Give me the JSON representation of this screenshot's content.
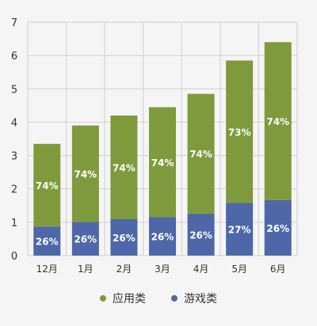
{
  "chart_data": {
    "type": "bar",
    "stacked": true,
    "categories": [
      "12月",
      "1月",
      "2月",
      "3月",
      "4月",
      "5月",
      "6月"
    ],
    "totals": [
      3.35,
      3.9,
      4.2,
      4.45,
      4.85,
      5.85,
      6.4
    ],
    "series": [
      {
        "name": "游戏类",
        "color": "#4d67a8",
        "labels": [
          "26%",
          "26%",
          "26%",
          "26%",
          "26%",
          "27%",
          "26%"
        ]
      },
      {
        "name": "应用类",
        "color": "#7f9a3c",
        "labels": [
          "74%",
          "74%",
          "74%",
          "74%",
          "74%",
          "73%",
          "74%"
        ]
      }
    ],
    "y_ticks": [
      "0",
      "1",
      "2",
      "3",
      "4",
      "5",
      "6",
      "7"
    ],
    "ylim": [
      0,
      7
    ],
    "grid": true,
    "legend": {
      "position": "bottom"
    }
  }
}
